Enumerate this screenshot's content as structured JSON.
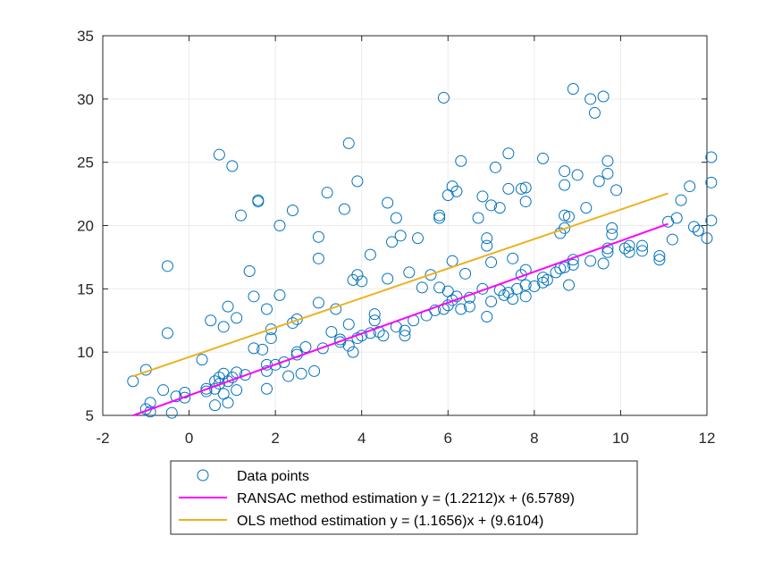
{
  "chart_data": {
    "type": "scatter",
    "title": "",
    "xlabel": "",
    "ylabel": "",
    "xlim": [
      -2,
      12
    ],
    "ylim": [
      5,
      35
    ],
    "x_ticks": [
      -2,
      0,
      2,
      4,
      6,
      8,
      10,
      12
    ],
    "y_ticks": [
      5,
      10,
      15,
      20,
      25,
      30,
      35
    ],
    "x_tick_labels": [
      "-2",
      "0",
      "2",
      "4",
      "6",
      "8",
      "10",
      "12"
    ],
    "y_tick_labels": [
      "5",
      "10",
      "15",
      "20",
      "25",
      "30",
      "35"
    ],
    "grid": true,
    "legend_position": "bottom-center-outside",
    "series": [
      {
        "name": "Data points",
        "kind": "scatter",
        "marker": "open-circle",
        "color": "#0072BD",
        "points": [
          [
            -1.3,
            7.7
          ],
          [
            -1.0,
            8.6
          ],
          [
            -1.0,
            5.5
          ],
          [
            -0.9,
            6.0
          ],
          [
            -0.9,
            5.3
          ],
          [
            -0.6,
            7.0
          ],
          [
            -0.5,
            11.5
          ],
          [
            -0.5,
            16.8
          ],
          [
            -0.4,
            5.2
          ],
          [
            -0.3,
            6.5
          ],
          [
            -0.1,
            6.8
          ],
          [
            -0.1,
            6.4
          ],
          [
            0.3,
            9.4
          ],
          [
            0.4,
            7.1
          ],
          [
            0.4,
            6.9
          ],
          [
            0.5,
            12.5
          ],
          [
            0.6,
            7.7
          ],
          [
            0.6,
            7.1
          ],
          [
            0.6,
            5.8
          ],
          [
            0.7,
            8.0
          ],
          [
            0.7,
            7.5
          ],
          [
            0.7,
            25.6
          ],
          [
            0.8,
            12.0
          ],
          [
            0.8,
            8.3
          ],
          [
            0.8,
            6.7
          ],
          [
            0.9,
            7.7
          ],
          [
            0.9,
            6.0
          ],
          [
            0.9,
            13.6
          ],
          [
            1.0,
            24.7
          ],
          [
            1.0,
            8.0
          ],
          [
            1.1,
            8.4
          ],
          [
            1.1,
            7.0
          ],
          [
            1.1,
            12.7
          ],
          [
            1.2,
            20.8
          ],
          [
            1.3,
            8.2
          ],
          [
            1.4,
            16.4
          ],
          [
            1.5,
            14.4
          ],
          [
            1.5,
            10.3
          ],
          [
            1.6,
            22.0
          ],
          [
            1.6,
            21.9
          ],
          [
            1.7,
            10.2
          ],
          [
            1.8,
            13.4
          ],
          [
            1.8,
            9.0
          ],
          [
            1.8,
            8.5
          ],
          [
            1.8,
            7.1
          ],
          [
            1.9,
            11.1
          ],
          [
            1.9,
            11.8
          ],
          [
            2.0,
            9.0
          ],
          [
            2.1,
            14.5
          ],
          [
            2.1,
            20.0
          ],
          [
            2.2,
            9.2
          ],
          [
            2.3,
            8.1
          ],
          [
            2.4,
            21.2
          ],
          [
            2.4,
            12.3
          ],
          [
            2.5,
            12.6
          ],
          [
            2.5,
            10.0
          ],
          [
            2.5,
            9.8
          ],
          [
            2.6,
            8.3
          ],
          [
            2.7,
            10.4
          ],
          [
            2.9,
            8.5
          ],
          [
            3.0,
            17.4
          ],
          [
            3.0,
            13.9
          ],
          [
            3.0,
            19.1
          ],
          [
            3.1,
            10.3
          ],
          [
            3.2,
            22.6
          ],
          [
            3.3,
            11.6
          ],
          [
            3.4,
            13.4
          ],
          [
            3.5,
            11.0
          ],
          [
            3.5,
            10.8
          ],
          [
            3.6,
            21.3
          ],
          [
            3.7,
            26.5
          ],
          [
            3.7,
            12.2
          ],
          [
            3.7,
            10.5
          ],
          [
            3.8,
            15.7
          ],
          [
            3.8,
            10.0
          ],
          [
            3.9,
            23.5
          ],
          [
            3.9,
            16.1
          ],
          [
            3.9,
            11.1
          ],
          [
            4.0,
            15.6
          ],
          [
            4.0,
            11.3
          ],
          [
            4.2,
            17.7
          ],
          [
            4.2,
            11.5
          ],
          [
            4.3,
            12.5
          ],
          [
            4.3,
            13.0
          ],
          [
            4.4,
            11.6
          ],
          [
            4.5,
            11.3
          ],
          [
            4.6,
            21.8
          ],
          [
            4.6,
            15.8
          ],
          [
            4.7,
            18.7
          ],
          [
            4.8,
            20.6
          ],
          [
            4.8,
            12.0
          ],
          [
            4.9,
            19.2
          ],
          [
            5.0,
            11.7
          ],
          [
            5.0,
            11.3
          ],
          [
            5.1,
            16.3
          ],
          [
            5.2,
            12.5
          ],
          [
            5.3,
            19.0
          ],
          [
            5.4,
            15.1
          ],
          [
            5.5,
            12.9
          ],
          [
            5.6,
            16.1
          ],
          [
            5.7,
            13.3
          ],
          [
            5.8,
            20.8
          ],
          [
            5.8,
            20.6
          ],
          [
            5.8,
            15.1
          ],
          [
            5.9,
            30.1
          ],
          [
            5.9,
            13.4
          ],
          [
            6.0,
            22.4
          ],
          [
            6.0,
            14.8
          ],
          [
            6.0,
            13.7
          ],
          [
            6.1,
            23.1
          ],
          [
            6.1,
            17.2
          ],
          [
            6.1,
            14.1
          ],
          [
            6.2,
            22.7
          ],
          [
            6.2,
            14.4
          ],
          [
            6.3,
            25.1
          ],
          [
            6.3,
            13.4
          ],
          [
            6.4,
            16.2
          ],
          [
            6.5,
            14.3
          ],
          [
            6.5,
            13.6
          ],
          [
            6.7,
            20.6
          ],
          [
            6.8,
            22.3
          ],
          [
            6.8,
            15.0
          ],
          [
            6.9,
            19.0
          ],
          [
            6.9,
            18.4
          ],
          [
            6.9,
            12.8
          ],
          [
            7.0,
            21.6
          ],
          [
            7.0,
            17.1
          ],
          [
            7.0,
            14.0
          ],
          [
            7.1,
            24.6
          ],
          [
            7.2,
            21.4
          ],
          [
            7.2,
            14.9
          ],
          [
            7.3,
            14.5
          ],
          [
            7.4,
            25.7
          ],
          [
            7.4,
            22.9
          ],
          [
            7.4,
            14.7
          ],
          [
            7.5,
            17.4
          ],
          [
            7.5,
            14.2
          ],
          [
            7.6,
            15.0
          ],
          [
            7.7,
            22.9
          ],
          [
            7.7,
            16.1
          ],
          [
            7.8,
            23.0
          ],
          [
            7.8,
            21.9
          ],
          [
            7.8,
            16.5
          ],
          [
            7.8,
            15.3
          ],
          [
            7.8,
            14.4
          ],
          [
            8.0,
            15.2
          ],
          [
            8.2,
            25.3
          ],
          [
            8.2,
            15.5
          ],
          [
            8.2,
            15.9
          ],
          [
            8.3,
            15.7
          ],
          [
            8.5,
            16.3
          ],
          [
            8.6,
            19.4
          ],
          [
            8.6,
            16.6
          ],
          [
            8.7,
            24.3
          ],
          [
            8.7,
            20.8
          ],
          [
            8.7,
            19.8
          ],
          [
            8.7,
            16.7
          ],
          [
            8.7,
            23.2
          ],
          [
            8.8,
            20.7
          ],
          [
            8.8,
            15.3
          ],
          [
            8.9,
            17.3
          ],
          [
            8.9,
            16.9
          ],
          [
            8.9,
            30.8
          ],
          [
            9.0,
            24.0
          ],
          [
            9.2,
            21.4
          ],
          [
            9.3,
            30.0
          ],
          [
            9.3,
            17.2
          ],
          [
            9.4,
            28.9
          ],
          [
            9.5,
            23.5
          ],
          [
            9.6,
            30.2
          ],
          [
            9.6,
            17.0
          ],
          [
            9.7,
            25.1
          ],
          [
            9.7,
            24.1
          ],
          [
            9.7,
            18.2
          ],
          [
            9.7,
            17.9
          ],
          [
            9.8,
            19.8
          ],
          [
            9.8,
            19.3
          ],
          [
            9.9,
            22.8
          ],
          [
            10.1,
            18.2
          ],
          [
            10.2,
            18.4
          ],
          [
            10.2,
            17.9
          ],
          [
            10.5,
            18.0
          ],
          [
            10.5,
            18.4
          ],
          [
            10.9,
            17.3
          ],
          [
            10.9,
            17.6
          ],
          [
            11.1,
            20.3
          ],
          [
            11.2,
            18.9
          ],
          [
            11.3,
            20.6
          ],
          [
            11.4,
            22.0
          ],
          [
            11.6,
            23.1
          ],
          [
            11.7,
            19.9
          ],
          [
            11.8,
            19.6
          ],
          [
            11.8,
            19.6
          ],
          [
            12.0,
            19.0
          ],
          [
            12.1,
            20.4
          ],
          [
            12.1,
            23.4
          ],
          [
            12.1,
            25.4
          ]
        ]
      },
      {
        "name": "RANSAC method estimation y = (1.2212)x + (6.5789)",
        "kind": "line",
        "color": "#FF00FF",
        "slope": 1.2212,
        "intercept": 6.5789,
        "x_range": [
          -1.3,
          11.1
        ]
      },
      {
        "name": "OLS method estimation y = (1.1656)x + (9.6104)",
        "kind": "line",
        "color": "#EDB120",
        "slope": 1.1656,
        "intercept": 9.6104,
        "x_range": [
          -1.3,
          11.1
        ]
      }
    ]
  }
}
